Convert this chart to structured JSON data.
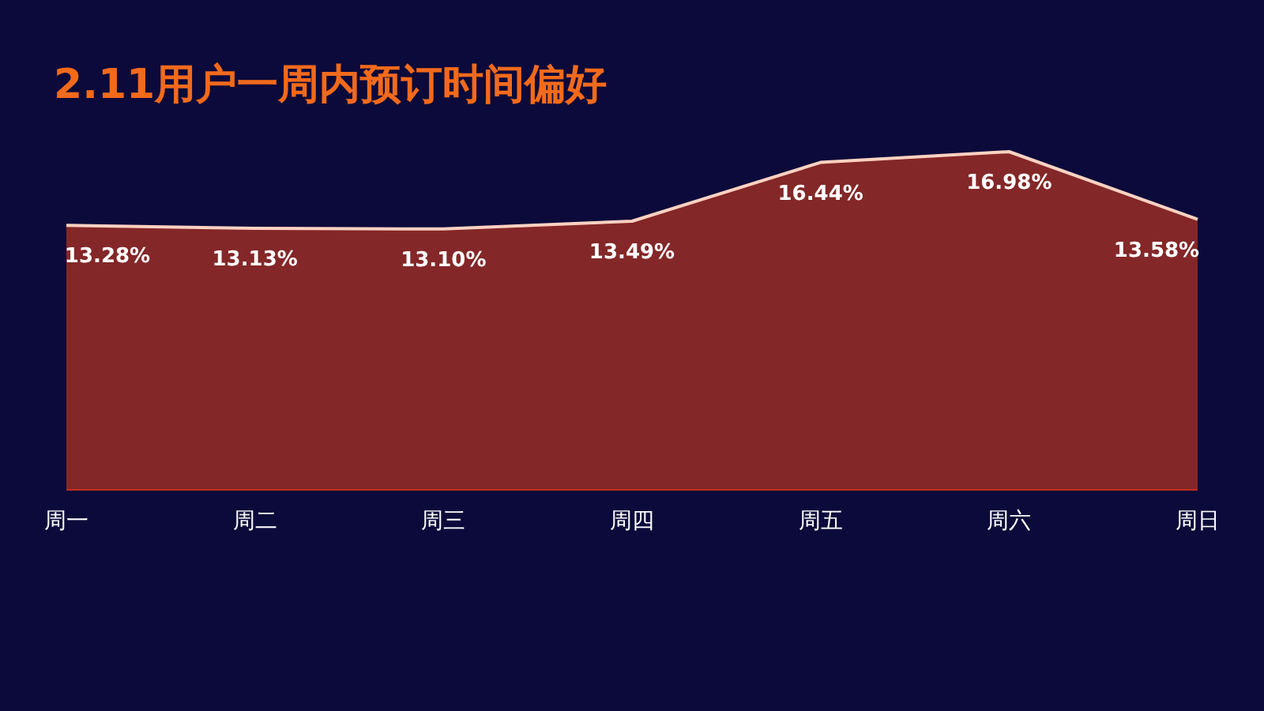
{
  "chart_data": {
    "type": "area",
    "title": "2.11用户一周内预订时间偏好",
    "categories": [
      "周一",
      "周二",
      "周三",
      "周四",
      "周五",
      "周六",
      "周日"
    ],
    "values": [
      13.28,
      13.13,
      13.1,
      13.49,
      16.44,
      16.98,
      13.58
    ],
    "value_labels": [
      "13.28%",
      "13.13%",
      "13.10%",
      "13.49%",
      "16.44%",
      "16.98%",
      "13.58%"
    ],
    "color": "#e8401a"
  }
}
